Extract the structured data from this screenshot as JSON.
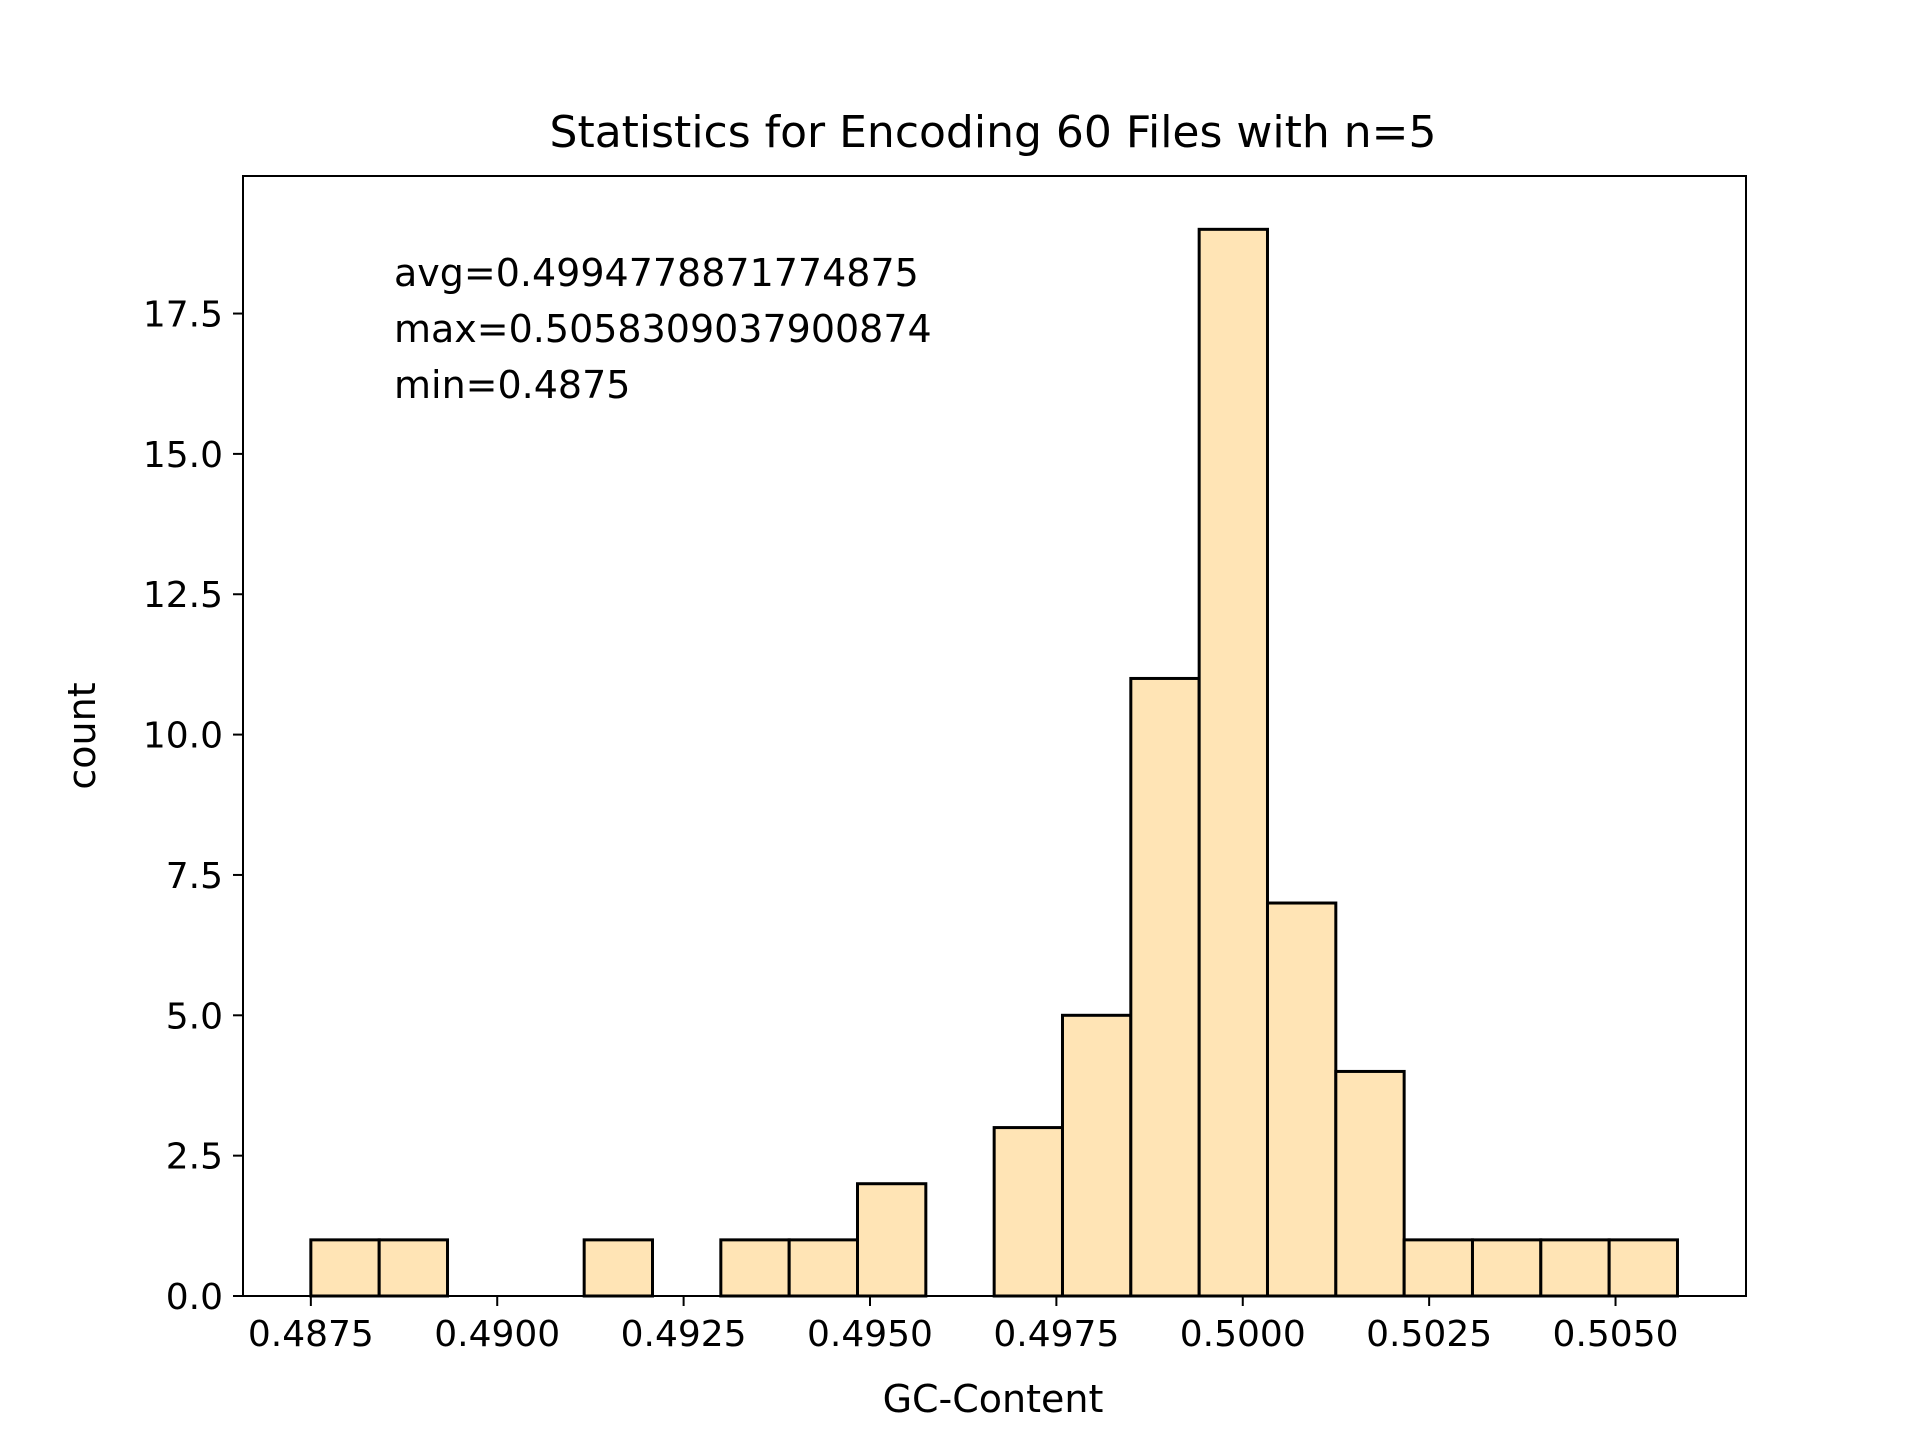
{
  "chart_data": {
    "type": "bar",
    "title": "Statistics for Encoding 60 Files with n=5",
    "xlabel": "GC-Content",
    "ylabel": "count",
    "bin_edges": [
      0.4875,
      0.4884165451895044,
      0.48933309037900874,
      0.4902496355685131,
      0.4911661807580175,
      0.4920827259475219,
      0.49299927113702624,
      0.4939158163265306,
      0.494832361516035,
      0.4957489067055394,
      0.49666545189504374,
      0.4975819970845481,
      0.4984985422740525,
      0.49941508746355684,
      0.5003316326530612,
      0.5012481778425656,
      0.50216472303207,
      0.5030812682215744,
      0.5039978134110787,
      0.5049143586005831,
      0.5058309037900874
    ],
    "values": [
      1,
      1,
      0,
      0,
      1,
      0,
      1,
      1,
      2,
      0,
      3,
      5,
      11,
      19,
      7,
      4,
      1,
      1,
      1,
      1
    ],
    "xlim": [
      0.48659,
      0.50675
    ],
    "ylim": [
      0,
      19.95
    ],
    "x_ticks": [
      0.4875,
      0.49,
      0.4925,
      0.495,
      0.4975,
      0.5,
      0.5025,
      0.505
    ],
    "x_tick_labels": [
      "0.4875",
      "0.4900",
      "0.4925",
      "0.4950",
      "0.4975",
      "0.5000",
      "0.5025",
      "0.5050"
    ],
    "y_ticks": [
      0,
      2.5,
      5,
      7.5,
      10,
      12.5,
      15,
      17.5
    ],
    "y_tick_labels": [
      "0.0",
      "2.5",
      "5.0",
      "7.5",
      "10.0",
      "12.5",
      "15.0",
      "17.5"
    ],
    "annotations": [
      "avg=0.4994778871774875",
      "max=0.5058309037900874",
      "min=0.4875"
    ],
    "bar_color": "#ffe4b5",
    "edge_color": "#000000",
    "grid": false,
    "legend": "none"
  }
}
